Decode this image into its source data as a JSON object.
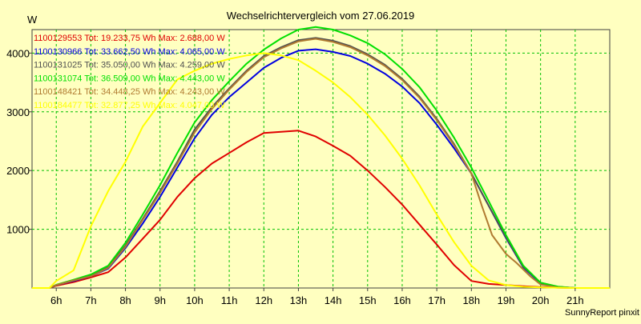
{
  "chart_data": {
    "type": "line",
    "title": "Wechselrichtervergleich vom 27.06.2019",
    "ylabel": "W",
    "footer": "SunnyReport pinxit",
    "xlim": [
      5.3,
      22.0
    ],
    "ylim": [
      0,
      4400
    ],
    "x_ticks": [
      6,
      7,
      8,
      9,
      10,
      11,
      12,
      13,
      14,
      15,
      16,
      17,
      18,
      19,
      20,
      21
    ],
    "x_tick_labels": [
      "6h",
      "7h",
      "8h",
      "9h",
      "10h",
      "11h",
      "12h",
      "13h",
      "14h",
      "15h",
      "16h",
      "17h",
      "18h",
      "19h",
      "20h",
      "21h"
    ],
    "y_ticks": [
      1000,
      2000,
      3000,
      4000
    ],
    "y_tick_labels": [
      "1000",
      "2000",
      "3000",
      "4000"
    ],
    "grid": true,
    "legend_position": "top-left",
    "series": [
      {
        "name": "1100129553 Tot: 19.233,75 Wh Max: 2.688,00 W",
        "color": "#e00000",
        "x": [
          5.3,
          5.8,
          6.0,
          6.5,
          7.0,
          7.5,
          8.0,
          8.5,
          9.0,
          9.5,
          10.0,
          10.5,
          11.0,
          11.5,
          12.0,
          12.5,
          13.0,
          13.5,
          14.0,
          14.5,
          15.0,
          15.5,
          16.0,
          16.5,
          17.0,
          17.5,
          18.0,
          18.5,
          19.0,
          19.5,
          20.0,
          20.5,
          21.0,
          21.5,
          22.0
        ],
        "y": [
          0,
          0,
          40,
          100,
          180,
          270,
          520,
          840,
          1160,
          1550,
          1870,
          2120,
          2300,
          2480,
          2640,
          2660,
          2680,
          2580,
          2420,
          2250,
          2000,
          1720,
          1420,
          1080,
          740,
          390,
          120,
          70,
          50,
          30,
          15,
          5,
          0,
          0,
          0
        ]
      },
      {
        "name": "1100130966 Tot: 33.662,50 Wh Max: 4.065,00 W",
        "color": "#0000e0",
        "x": [
          5.3,
          5.8,
          6.0,
          6.5,
          7.0,
          7.5,
          8.0,
          8.5,
          9.0,
          9.5,
          10.0,
          10.5,
          11.0,
          11.5,
          12.0,
          12.5,
          13.0,
          13.5,
          14.0,
          14.5,
          15.0,
          15.5,
          16.0,
          16.5,
          17.0,
          17.5,
          18.0,
          18.5,
          19.0,
          19.5,
          20.0,
          20.5,
          21.0,
          21.5,
          22.0
        ],
        "y": [
          0,
          0,
          50,
          120,
          200,
          330,
          680,
          1100,
          1550,
          2050,
          2550,
          2950,
          3250,
          3500,
          3750,
          3920,
          4040,
          4065,
          4020,
          3950,
          3820,
          3650,
          3430,
          3150,
          2780,
          2380,
          1950,
          1400,
          850,
          350,
          80,
          20,
          0,
          0,
          0
        ]
      },
      {
        "name": "1100131025 Tot: 35.050,00 Wh Max: 4.259,00 W",
        "color": "#505050",
        "x": [
          5.3,
          5.8,
          6.0,
          6.5,
          7.0,
          7.5,
          8.0,
          8.5,
          9.0,
          9.5,
          10.0,
          10.5,
          11.0,
          11.5,
          12.0,
          12.5,
          13.0,
          13.5,
          14.0,
          14.5,
          15.0,
          15.5,
          16.0,
          16.5,
          17.0,
          17.5,
          18.0,
          18.5,
          19.0,
          19.5,
          20.0,
          20.5,
          21.0,
          21.5,
          22.0
        ],
        "y": [
          0,
          0,
          50,
          130,
          210,
          350,
          720,
          1180,
          1650,
          2150,
          2700,
          3080,
          3400,
          3700,
          3950,
          4100,
          4220,
          4259,
          4210,
          4120,
          3980,
          3800,
          3560,
          3260,
          2880,
          2450,
          1950,
          1400,
          860,
          360,
          90,
          20,
          0,
          0,
          0
        ]
      },
      {
        "name": "1100131074 Tot: 36.509,00 Wh Max: 4.443,00 W",
        "color": "#00e000",
        "x": [
          5.3,
          5.8,
          6.0,
          6.5,
          7.0,
          7.5,
          8.0,
          8.5,
          9.0,
          9.5,
          10.0,
          10.5,
          11.0,
          11.5,
          12.0,
          12.5,
          13.0,
          13.5,
          14.0,
          14.5,
          15.0,
          15.5,
          16.0,
          16.5,
          17.0,
          17.5,
          18.0,
          18.5,
          19.0,
          19.5,
          20.0,
          20.5,
          21.0,
          21.5,
          22.0
        ],
        "y": [
          0,
          0,
          55,
          140,
          230,
          380,
          770,
          1250,
          1750,
          2300,
          2820,
          3200,
          3520,
          3820,
          4060,
          4250,
          4400,
          4443,
          4400,
          4300,
          4170,
          3980,
          3730,
          3420,
          3020,
          2560,
          2050,
          1480,
          900,
          380,
          90,
          25,
          0,
          0,
          0
        ]
      },
      {
        "name": "1100148421 Tot: 34.448,25 Wh Max: 4.243,00 W",
        "color": "#b07a30",
        "x": [
          5.3,
          5.8,
          6.0,
          6.5,
          7.0,
          7.5,
          8.0,
          8.5,
          9.0,
          9.5,
          10.0,
          10.5,
          11.0,
          11.5,
          12.0,
          12.5,
          13.0,
          13.5,
          14.0,
          14.5,
          15.0,
          15.5,
          16.0,
          16.5,
          17.0,
          17.5,
          18.0,
          18.3,
          18.6,
          19.0,
          19.3,
          19.7,
          20.0,
          20.5,
          21.0,
          22.0
        ],
        "y": [
          0,
          0,
          50,
          130,
          200,
          340,
          700,
          1160,
          1620,
          2120,
          2650,
          3050,
          3380,
          3680,
          3930,
          4080,
          4200,
          4243,
          4190,
          4100,
          3960,
          3780,
          3540,
          3240,
          2860,
          2430,
          1950,
          1400,
          900,
          580,
          430,
          200,
          60,
          10,
          0,
          0
        ]
      },
      {
        "name": "1100184477 Tot: 32.877,25 Wh Max: 4.047,00 W",
        "color": "#ffff00",
        "x": [
          5.3,
          5.8,
          6.0,
          6.5,
          7.0,
          7.5,
          8.0,
          8.5,
          9.0,
          9.5,
          10.0,
          10.5,
          11.0,
          11.5,
          12.0,
          12.5,
          13.0,
          13.5,
          14.0,
          14.5,
          15.0,
          15.5,
          16.0,
          16.5,
          17.0,
          17.5,
          18.0,
          18.5,
          19.0,
          19.5,
          20.0,
          20.5,
          21.0,
          22.0
        ],
        "y": [
          0,
          0,
          120,
          300,
          1050,
          1650,
          2150,
          2750,
          3150,
          3550,
          3700,
          3820,
          3900,
          3960,
          4000,
          3960,
          3880,
          3700,
          3500,
          3250,
          2950,
          2600,
          2200,
          1750,
          1250,
          780,
          380,
          130,
          50,
          20,
          10,
          5,
          0,
          0
        ]
      }
    ]
  }
}
